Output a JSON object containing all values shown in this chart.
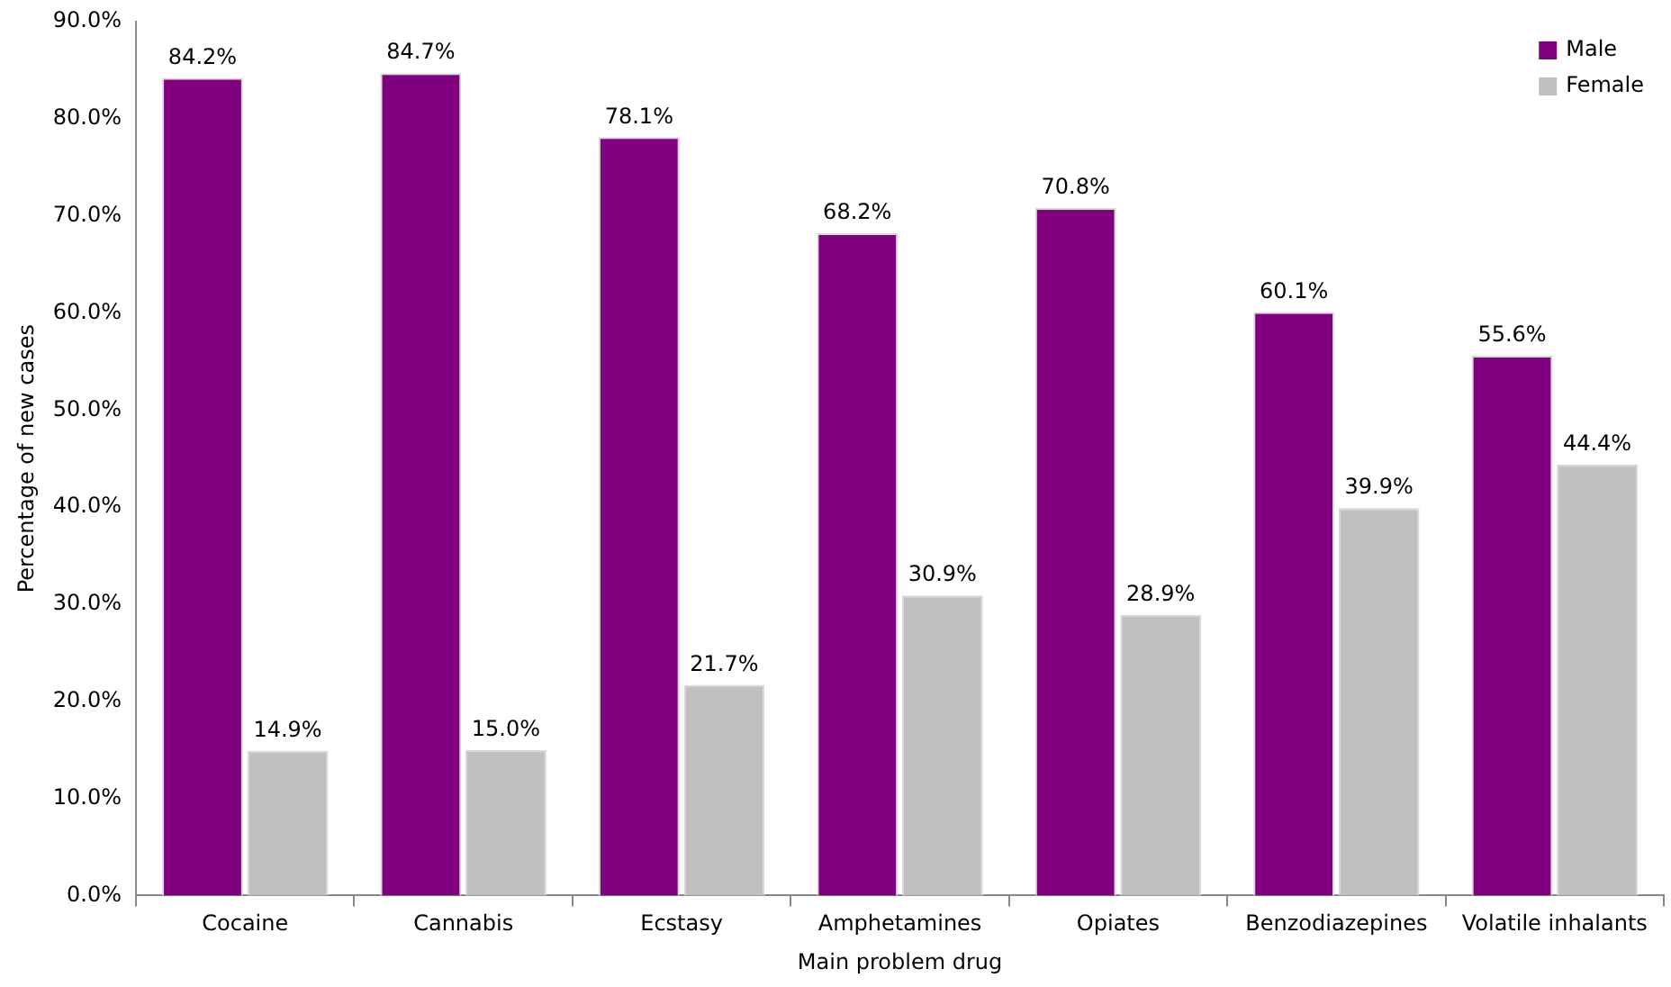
{
  "chart_data": {
    "type": "bar",
    "xlabel": "Main problem drug",
    "ylabel": "Percentage of new cases",
    "categories": [
      "Cocaine",
      "Cannabis",
      "Ecstasy",
      "Amphetamines",
      "Opiates",
      "Benzodiazepines",
      "Volatile inhalants"
    ],
    "series": [
      {
        "name": "Male",
        "color": "#800080",
        "values": [
          84.2,
          84.7,
          78.1,
          68.2,
          70.8,
          60.1,
          55.6
        ],
        "value_labels": [
          "84.2%",
          "84.7%",
          "78.1%",
          "68.2%",
          "70.8%",
          "60.1%",
          "55.6%"
        ]
      },
      {
        "name": "Female",
        "color": "#c0c0c0",
        "values": [
          14.9,
          15.0,
          21.7,
          30.9,
          28.9,
          39.9,
          44.4
        ],
        "value_labels": [
          "14.9%",
          "15.0%",
          "21.7%",
          "30.9%",
          "28.9%",
          "39.9%",
          "44.4%"
        ]
      }
    ],
    "ylim": [
      0,
      90
    ],
    "yticks": [
      {
        "value": 0,
        "label": "0.0%"
      },
      {
        "value": 10,
        "label": "10.0%"
      },
      {
        "value": 20,
        "label": "20.0%"
      },
      {
        "value": 30,
        "label": "30.0%"
      },
      {
        "value": 40,
        "label": "40.0%"
      },
      {
        "value": 50,
        "label": "50.0%"
      },
      {
        "value": 60,
        "label": "60.0%"
      },
      {
        "value": 70,
        "label": "70.0%"
      },
      {
        "value": 80,
        "label": "80.0%"
      },
      {
        "value": 90,
        "label": "90.0%"
      }
    ],
    "grid": false,
    "legend": "top right"
  }
}
